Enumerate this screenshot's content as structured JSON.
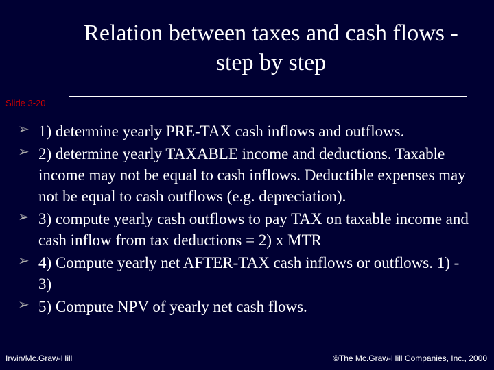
{
  "colors": {
    "background": "#000033",
    "text": "#ffffff",
    "accent_red": "#cc0000",
    "bullet": "#aaaaaa",
    "rule": "#ffffff"
  },
  "typography": {
    "title_fontsize": 34,
    "body_fontsize": 23,
    "footer_fontsize": 12,
    "slidenum_fontsize": 13,
    "serif_family": "Palatino Linotype, Book Antiqua, Palatino, Georgia, serif",
    "sans_family": "Arial, Helvetica, sans-serif"
  },
  "title": "Relation between taxes and cash flows - step by step",
  "slide_number": "Slide 3-20",
  "bullets": [
    "1) determine yearly PRE-TAX cash inflows and outflows.",
    "2) determine yearly TAXABLE income and deductions.  Taxable income may not be equal to cash inflows.  Deductible expenses may not be equal to cash outflows (e.g. depreciation).",
    "3) compute yearly cash outflows to pay TAX on taxable income and cash inflow from tax deductions = 2) x MTR",
    "4)  Compute yearly net AFTER-TAX cash inflows or outflows.  1) - 3)",
    "5) Compute NPV of yearly net cash flows."
  ],
  "footer": {
    "left": "Irwin/Mc.Graw-Hill",
    "right": "©The Mc.Graw-Hill Companies, Inc., 2000"
  }
}
